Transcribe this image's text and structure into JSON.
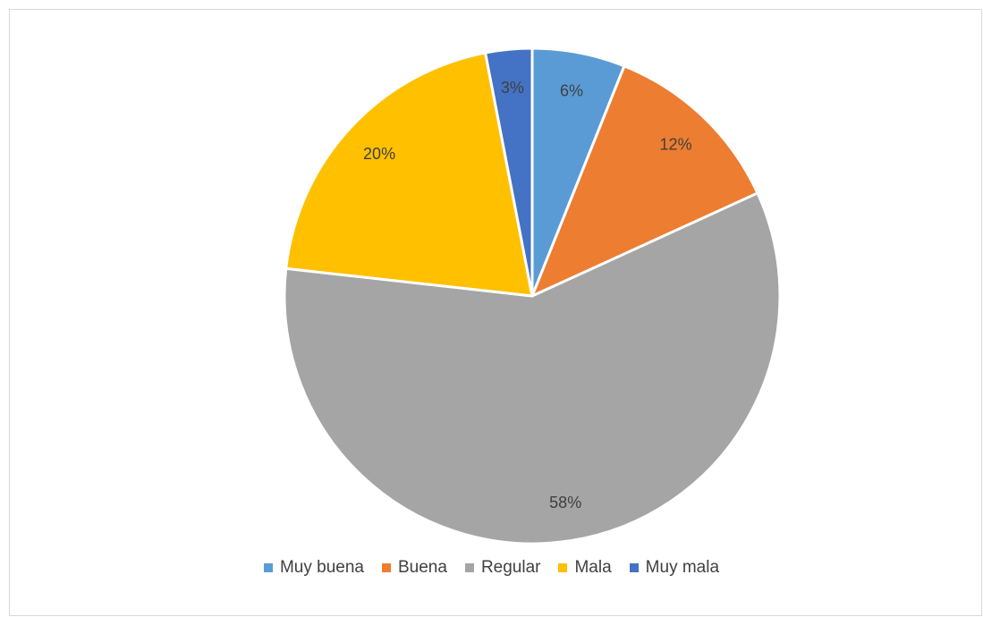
{
  "chart_data": {
    "type": "pie",
    "title": "",
    "categories": [
      "Muy buena",
      "Buena",
      "Regular",
      "Mala",
      "Muy mala"
    ],
    "values": [
      6,
      12,
      58,
      20,
      3
    ],
    "labels": [
      "6%",
      "12%",
      "58%",
      "20%",
      "3%"
    ],
    "colors": [
      "#5b9bd5",
      "#ed7d31",
      "#a5a5a5",
      "#ffc000",
      "#4472c4"
    ],
    "legend_position": "bottom",
    "start_angle": "12 o'clock, clockwise"
  },
  "legend": {
    "items": [
      {
        "label": "Muy buena",
        "color": "#5b9bd5"
      },
      {
        "label": "Buena",
        "color": "#ed7d31"
      },
      {
        "label": "Regular",
        "color": "#a5a5a5"
      },
      {
        "label": "Mala",
        "color": "#ffc000"
      },
      {
        "label": "Muy mala",
        "color": "#4472c4"
      }
    ]
  }
}
